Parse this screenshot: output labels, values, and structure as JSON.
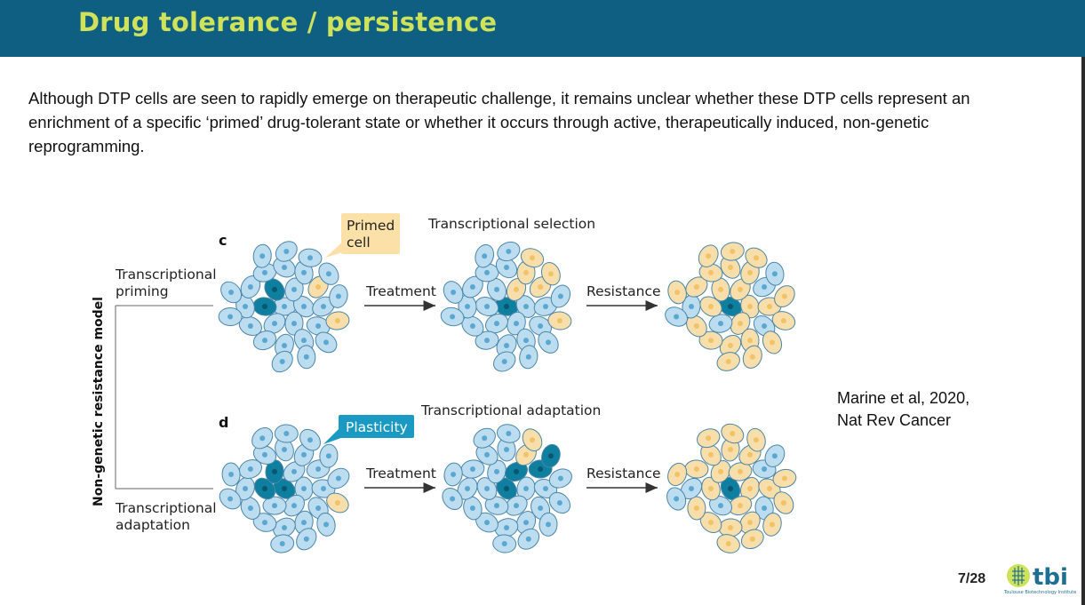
{
  "slide": {
    "title": "Drug tolerance / persistence",
    "paragraph": "Although DTP cells are seen to rapidly emerge on therapeutic challenge, it remains unclear whether these DTP cells represent an enrichment of a specific ‘primed’ drug-tolerant state or whether it occurs through active, therapeutically induced, non-genetic reprogramming.",
    "citation_line1": "Marine et al, 2020,",
    "citation_line2": "Nat Rev Cancer",
    "page_number": "7/28"
  },
  "figure": {
    "vertical_label": "Non-genetic resistance model",
    "panel_c": {
      "letter": "c",
      "branch_label_line1": "Transcriptional",
      "branch_label_line2": "priming",
      "callout_line1": "Primed",
      "callout_line2": "cell",
      "heading": "Transcriptional selection",
      "arrow1": "Treatment",
      "arrow2": "Resistance"
    },
    "panel_d": {
      "letter": "d",
      "branch_label_line1": "Transcriptional",
      "branch_label_line2": "adaptation",
      "callout": "Plasticity",
      "heading": "Transcriptional adaptation",
      "arrow1": "Treatment",
      "arrow2": "Resistance"
    },
    "colors": {
      "cell_light_blue": "#bcdcf0",
      "cell_dark_teal": "#0f7fa0",
      "cell_primed_yellow": "#f8deaa",
      "callout_primed": "#fbe0a8",
      "callout_plasticity": "#1a9ac2"
    }
  },
  "logo": {
    "text": "tbi",
    "subtitle": "Toulouse Biotechnology Institute",
    "color": "#1f6f93"
  }
}
